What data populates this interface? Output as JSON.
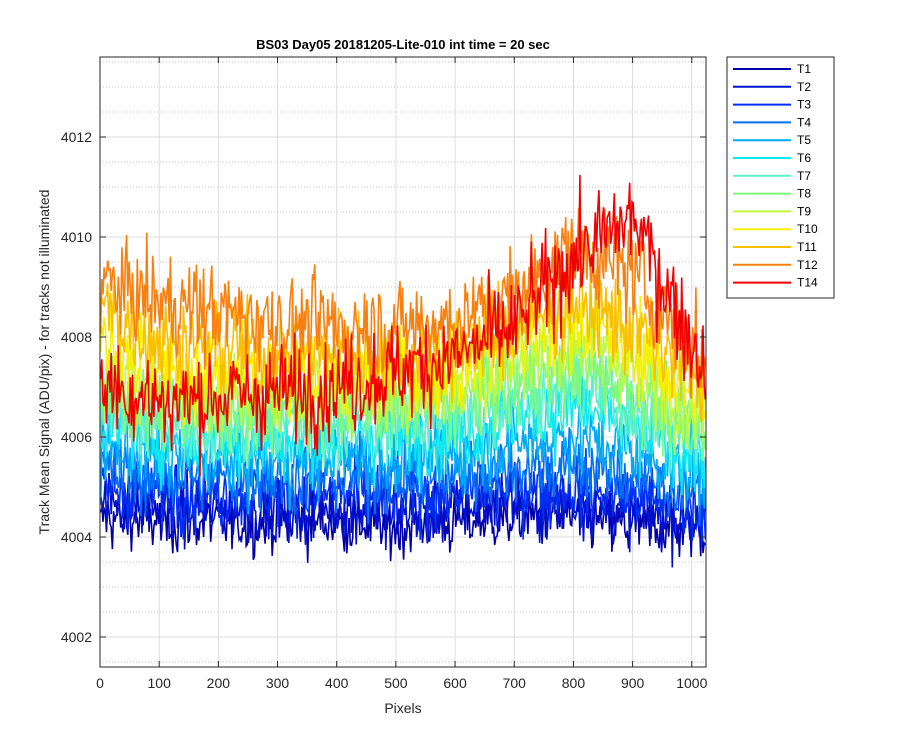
{
  "chart_data": {
    "type": "line",
    "title": "BS03 Day05 20181205-Lite-010 int time = 20 sec",
    "xlabel": "Pixels",
    "ylabel": "Track Mean Signal (ADU/pix) - for tracks not illuminated",
    "xlim": [
      0,
      1024
    ],
    "ylim": [
      4001.4,
      4013.6
    ],
    "xticks": [
      0,
      100,
      200,
      300,
      400,
      500,
      600,
      700,
      800,
      900,
      1000
    ],
    "yticks": [
      4002,
      4004,
      4006,
      4008,
      4010,
      4012
    ],
    "grid": true,
    "minor_grid_y": true,
    "legend_position": "outside-top-right",
    "series": [
      {
        "name": "T1",
        "color": "#0000AA",
        "profile": [
          [
            0,
            4004.4
          ],
          [
            100,
            4004.3
          ],
          [
            200,
            4004.3
          ],
          [
            300,
            4004.3
          ],
          [
            400,
            4004.3
          ],
          [
            500,
            4004.2
          ],
          [
            600,
            4004.3
          ],
          [
            700,
            4004.4
          ],
          [
            800,
            4004.4
          ],
          [
            900,
            4004.2
          ],
          [
            1024,
            4004.2
          ]
        ]
      },
      {
        "name": "T2",
        "color": "#0010D0",
        "profile": [
          [
            0,
            4004.7
          ],
          [
            100,
            4004.6
          ],
          [
            200,
            4004.6
          ],
          [
            300,
            4004.6
          ],
          [
            400,
            4004.6
          ],
          [
            500,
            4004.5
          ],
          [
            600,
            4004.6
          ],
          [
            700,
            4004.7
          ],
          [
            800,
            4004.7
          ],
          [
            900,
            4004.5
          ],
          [
            1024,
            4004.4
          ]
        ]
      },
      {
        "name": "T3",
        "color": "#0030F0",
        "profile": [
          [
            0,
            4005.0
          ],
          [
            100,
            4004.9
          ],
          [
            200,
            4004.9
          ],
          [
            300,
            4004.9
          ],
          [
            400,
            4004.9
          ],
          [
            500,
            4004.8
          ],
          [
            600,
            4004.9
          ],
          [
            700,
            4005.0
          ],
          [
            800,
            4005.0
          ],
          [
            900,
            4004.8
          ],
          [
            1024,
            4004.6
          ]
        ]
      },
      {
        "name": "T4",
        "color": "#0070F5",
        "profile": [
          [
            0,
            4005.3
          ],
          [
            100,
            4005.2
          ],
          [
            200,
            4005.2
          ],
          [
            300,
            4005.2
          ],
          [
            400,
            4005.2
          ],
          [
            500,
            4005.2
          ],
          [
            600,
            4005.2
          ],
          [
            700,
            4005.4
          ],
          [
            800,
            4005.4
          ],
          [
            900,
            4005.2
          ],
          [
            1024,
            4004.9
          ]
        ]
      },
      {
        "name": "T5",
        "color": "#00AAF5",
        "profile": [
          [
            0,
            4005.8
          ],
          [
            100,
            4005.6
          ],
          [
            200,
            4005.5
          ],
          [
            300,
            4005.5
          ],
          [
            400,
            4005.6
          ],
          [
            500,
            4005.6
          ],
          [
            600,
            4005.7
          ],
          [
            700,
            4005.9
          ],
          [
            800,
            4006.0
          ],
          [
            900,
            4005.7
          ],
          [
            1024,
            4005.2
          ]
        ]
      },
      {
        "name": "T6",
        "color": "#10E8F0",
        "profile": [
          [
            0,
            4006.3
          ],
          [
            100,
            4006.0
          ],
          [
            200,
            4005.9
          ],
          [
            300,
            4005.9
          ],
          [
            400,
            4006.0
          ],
          [
            500,
            4006.0
          ],
          [
            600,
            4006.1
          ],
          [
            700,
            4006.4
          ],
          [
            800,
            4006.6
          ],
          [
            900,
            4006.2
          ],
          [
            1024,
            4005.5
          ]
        ]
      },
      {
        "name": "T7",
        "color": "#60F0C8",
        "profile": [
          [
            0,
            4006.6
          ],
          [
            100,
            4006.3
          ],
          [
            200,
            4006.2
          ],
          [
            300,
            4006.2
          ],
          [
            400,
            4006.3
          ],
          [
            500,
            4006.3
          ],
          [
            600,
            4006.4
          ],
          [
            700,
            4006.8
          ],
          [
            800,
            4007.0
          ],
          [
            900,
            4006.6
          ],
          [
            1024,
            4005.8
          ]
        ]
      },
      {
        "name": "T8",
        "color": "#80F880",
        "profile": [
          [
            0,
            4006.9
          ],
          [
            100,
            4006.6
          ],
          [
            200,
            4006.5
          ],
          [
            300,
            4006.5
          ],
          [
            400,
            4006.6
          ],
          [
            500,
            4006.6
          ],
          [
            600,
            4006.7
          ],
          [
            700,
            4007.1
          ],
          [
            800,
            4007.4
          ],
          [
            900,
            4007.0
          ],
          [
            1024,
            4006.1
          ]
        ]
      },
      {
        "name": "T9",
        "color": "#C0F840",
        "profile": [
          [
            0,
            4007.3
          ],
          [
            100,
            4006.9
          ],
          [
            200,
            4006.8
          ],
          [
            300,
            4006.8
          ],
          [
            400,
            4006.9
          ],
          [
            500,
            4006.9
          ],
          [
            600,
            4007.0
          ],
          [
            700,
            4007.5
          ],
          [
            800,
            4007.9
          ],
          [
            900,
            4007.4
          ],
          [
            1024,
            4006.4
          ]
        ]
      },
      {
        "name": "T10",
        "color": "#F8F000",
        "profile": [
          [
            0,
            4008.1
          ],
          [
            100,
            4007.4
          ],
          [
            200,
            4007.2
          ],
          [
            300,
            4007.2
          ],
          [
            400,
            4007.3
          ],
          [
            500,
            4007.3
          ],
          [
            600,
            4007.4
          ],
          [
            700,
            4007.9
          ],
          [
            800,
            4008.3
          ],
          [
            900,
            4007.8
          ],
          [
            1024,
            4006.7
          ]
        ]
      },
      {
        "name": "T11",
        "color": "#F8C000",
        "profile": [
          [
            0,
            4008.6
          ],
          [
            100,
            4007.9
          ],
          [
            200,
            4007.8
          ],
          [
            300,
            4007.7
          ],
          [
            400,
            4007.7
          ],
          [
            500,
            4007.6
          ],
          [
            600,
            4007.7
          ],
          [
            700,
            4008.2
          ],
          [
            800,
            4008.7
          ],
          [
            900,
            4008.2
          ],
          [
            1024,
            4007.0
          ]
        ]
      },
      {
        "name": "T12",
        "color": "#F88010",
        "profile": [
          [
            0,
            4009.1
          ],
          [
            100,
            4008.7
          ],
          [
            200,
            4008.5
          ],
          [
            300,
            4008.3
          ],
          [
            400,
            4008.2
          ],
          [
            500,
            4008.2
          ],
          [
            600,
            4008.3
          ],
          [
            700,
            4008.8
          ],
          [
            800,
            4009.8
          ],
          [
            900,
            4009.3
          ],
          [
            1024,
            4007.5
          ]
        ]
      },
      {
        "name": "T14",
        "color": "#F00000",
        "profile": [
          [
            0,
            4007.1
          ],
          [
            100,
            4006.7
          ],
          [
            200,
            4006.8
          ],
          [
            300,
            4006.9
          ],
          [
            400,
            4007.0
          ],
          [
            500,
            4007.3
          ],
          [
            600,
            4007.6
          ],
          [
            700,
            4008.2
          ],
          [
            800,
            4009.6
          ],
          [
            900,
            4010.4
          ],
          [
            1024,
            4007.3
          ]
        ]
      }
    ]
  }
}
